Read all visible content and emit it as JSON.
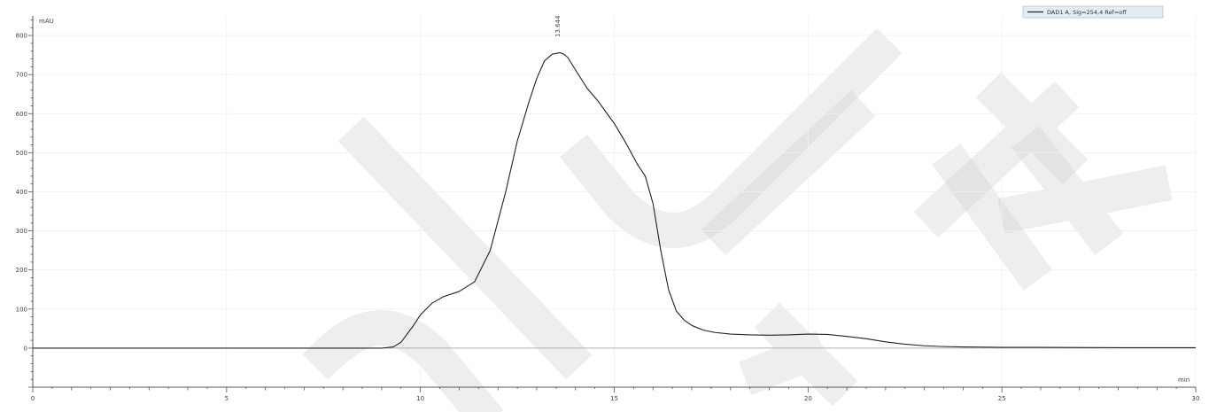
{
  "chart_data": {
    "type": "line",
    "ylabel": "mAU",
    "xlabel": "min",
    "xlim": [
      0,
      30
    ],
    "ylim": [
      -100,
      850
    ],
    "x_ticks": [
      0,
      5,
      10,
      15,
      20,
      25,
      30
    ],
    "y_ticks": [
      0,
      100,
      200,
      300,
      400,
      500,
      600,
      700,
      800
    ],
    "y_tick_labels": [
      "0",
      "100",
      "200",
      "300",
      "400",
      "500",
      "600",
      "700",
      "800"
    ],
    "grid": true,
    "legend_position": "top-right",
    "series": [
      {
        "name": "DAD1 A, Sig=254,4 Ref=off",
        "color": "#222222",
        "x": [
          0,
          9.0,
          9.3,
          9.5,
          9.8,
          10.0,
          10.3,
          10.6,
          11.0,
          11.4,
          11.8,
          12.2,
          12.5,
          12.8,
          13.0,
          13.2,
          13.4,
          13.6,
          13.7,
          13.8,
          14.0,
          14.3,
          14.6,
          14.8,
          15.0,
          15.3,
          15.6,
          15.8,
          16.0,
          16.2,
          16.4,
          16.6,
          16.8,
          17.0,
          17.3,
          17.6,
          18.0,
          18.5,
          19.0,
          19.5,
          20.0,
          20.5,
          21.0,
          21.5,
          22.0,
          22.5,
          23.0,
          23.5,
          24.0,
          25.0,
          26.0,
          28.0,
          30.0
        ],
        "y": [
          0,
          0,
          3,
          15,
          55,
          85,
          115,
          132,
          145,
          170,
          250,
          400,
          530,
          630,
          690,
          735,
          752,
          756,
          752,
          744,
          712,
          665,
          630,
          602,
          575,
          525,
          470,
          440,
          370,
          250,
          150,
          95,
          72,
          58,
          46,
          40,
          36,
          34,
          33,
          34,
          36,
          35,
          30,
          24,
          16,
          10,
          6,
          4,
          3,
          2,
          2,
          1,
          1
        ]
      }
    ],
    "peak_labels": [
      {
        "x": 13.6,
        "text": "13.644"
      }
    ]
  }
}
